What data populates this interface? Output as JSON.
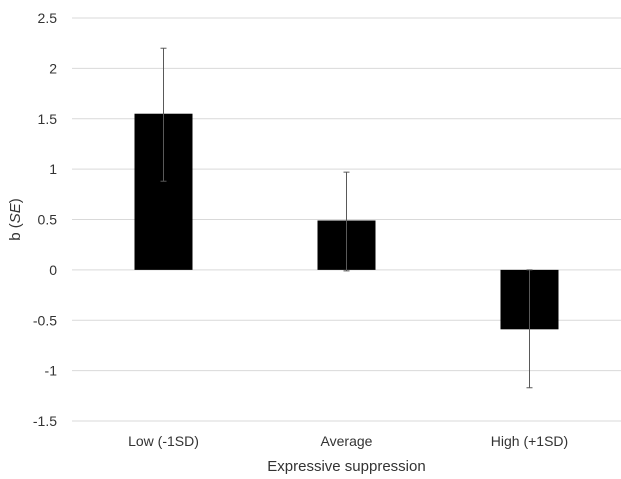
{
  "chart_data": {
    "type": "bar",
    "categories": [
      "Low (-1SD)",
      "Average",
      "High (+1SD)"
    ],
    "values": [
      1.55,
      0.49,
      -0.59
    ],
    "error_bars": [
      {
        "low": 0.88,
        "high": 2.2
      },
      {
        "low": -0.01,
        "high": 0.97
      },
      {
        "low": -1.17,
        "high": 0.0
      }
    ],
    "xlabel": "Expressive suppression",
    "ylabel_prefix": "b (",
    "ylabel_italic": "SE",
    "ylabel_suffix": ")",
    "ylim": [
      -1.5,
      2.5
    ],
    "yticks": [
      "2.5",
      "2",
      "1.5",
      "1",
      "0.5",
      "0",
      "-0.5",
      "-1",
      "-1.5"
    ],
    "ytick_values": [
      2.5,
      2,
      1.5,
      1,
      0.5,
      0,
      -0.5,
      -1,
      -1.5
    ],
    "grid": true,
    "bar_color": "#000000",
    "grid_color": "#d9d9d9",
    "error_bar_color": "#595959"
  }
}
